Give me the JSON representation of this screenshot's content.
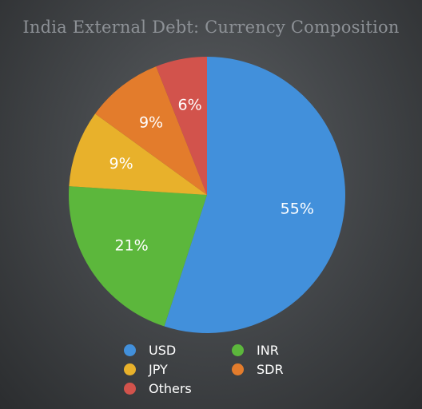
{
  "chart_data": {
    "type": "pie",
    "title": "India External Debt: Currency Composition",
    "categories": [
      "USD",
      "INR",
      "JPY",
      "SDR",
      "Others"
    ],
    "values": [
      55,
      21,
      9,
      9,
      6
    ],
    "labels": [
      "55%",
      "21%",
      "9%",
      "9%",
      "6%"
    ],
    "colors": [
      "#4290db",
      "#5cb73c",
      "#e8b12b",
      "#e37c2c",
      "#d2534c"
    ],
    "legend_position": "bottom"
  }
}
